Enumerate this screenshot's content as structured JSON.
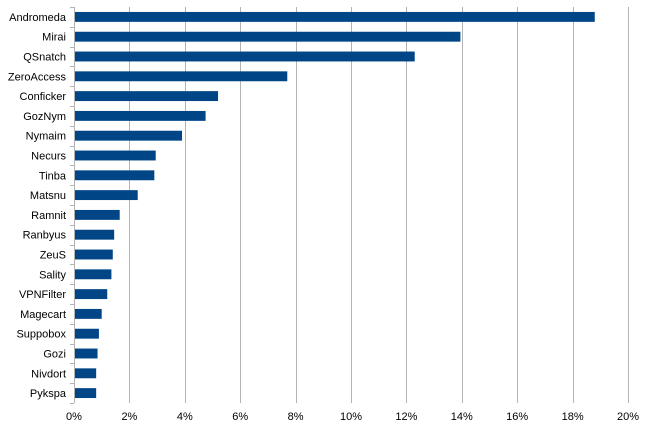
{
  "chart_data": {
    "type": "bar",
    "orientation": "horizontal",
    "categories": [
      "Andromeda",
      "Mirai",
      "QSnatch",
      "ZeroAccess",
      "Conficker",
      "GozNym",
      "Nymaim",
      "Necurs",
      "Tinba",
      "Matsnu",
      "Ramnit",
      "Ranbyus",
      "ZeuS",
      "Sality",
      "VPNFilter",
      "Magecart",
      "Suppobox",
      "Gozi",
      "Nivdort",
      "Pykspa"
    ],
    "values": [
      18.8,
      13.95,
      12.3,
      7.7,
      5.2,
      4.75,
      3.9,
      2.95,
      2.9,
      2.3,
      1.65,
      1.45,
      1.4,
      1.35,
      1.2,
      1.0,
      0.9,
      0.85,
      0.8,
      0.8
    ],
    "xlim": [
      0,
      20
    ],
    "x_ticks": [
      0,
      2,
      4,
      6,
      8,
      10,
      12,
      14,
      16,
      18,
      20
    ],
    "x_tick_labels": [
      "0%",
      "2%",
      "4%",
      "6%",
      "8%",
      "10%",
      "12%",
      "14%",
      "16%",
      "18%",
      "20%"
    ],
    "grid": "vertical",
    "legend": "none",
    "bar_color": "#004586",
    "grid_color": "#b3b3b3",
    "axis_color": "#b3b3b3"
  }
}
